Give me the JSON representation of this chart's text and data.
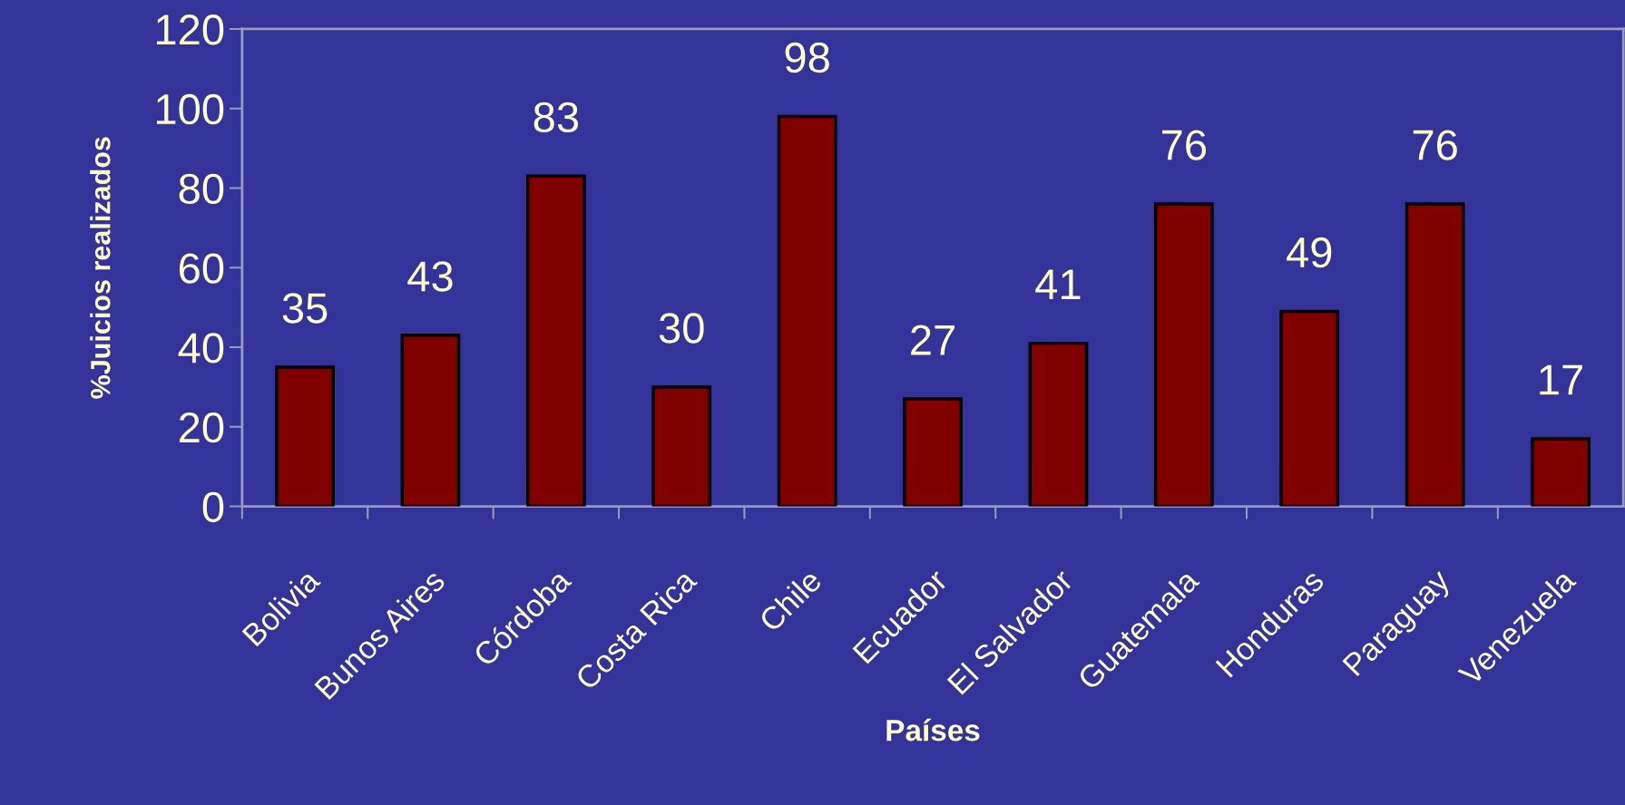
{
  "chart_data": {
    "type": "bar",
    "xlabel": "Países",
    "ylabel": "%Juicios realizados",
    "categories": [
      "Bolivia",
      "Bunos Aires",
      "Córdoba",
      "Costa Rica",
      "Chile",
      "Ecuador",
      "El Salvador",
      "Guatemala",
      "Honduras",
      "Paraguay",
      "Venezuela"
    ],
    "values": [
      35,
      43,
      83,
      30,
      98,
      27,
      41,
      76,
      49,
      76,
      17
    ],
    "color": "#800000",
    "ylim": [
      0,
      120
    ],
    "yticks": [
      0,
      20,
      40,
      60,
      80,
      100,
      120
    ],
    "data_labels": true,
    "grid": false,
    "legend": false
  }
}
